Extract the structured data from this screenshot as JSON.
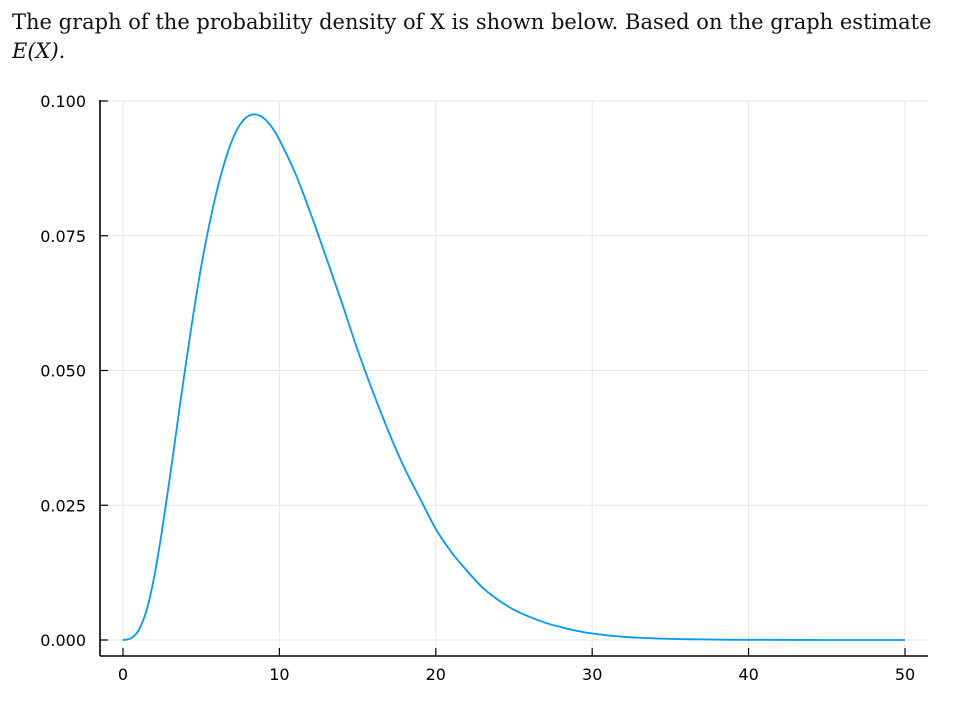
{
  "question": {
    "line1": "The graph of the probability density of X is shown below. Based on the graph estimate",
    "line2": "E(X)."
  },
  "colors": {
    "series": "#009af9",
    "axis": "#000000",
    "grid": "#e6e6e6",
    "text": "#111111"
  },
  "chart_data": {
    "type": "line",
    "title": "",
    "xlabel": "",
    "ylabel": "",
    "xlim": [
      0,
      50
    ],
    "ylim": [
      0.0,
      0.1
    ],
    "grid": true,
    "legend": "none",
    "xticks": [
      0,
      10,
      20,
      30,
      40,
      50
    ],
    "xtick_labels": [
      "0",
      "10",
      "20",
      "30",
      "40",
      "50"
    ],
    "yticks": [
      0.0,
      0.025,
      0.05,
      0.075,
      0.1
    ],
    "ytick_labels": [
      "0.000",
      "0.025",
      "0.050",
      "0.075",
      "0.100"
    ],
    "series": [
      {
        "x": [
          0,
          0.5,
          1,
          1.5,
          2,
          2.5,
          3,
          3.5,
          4,
          4.5,
          5,
          5.5,
          6,
          6.5,
          7,
          7.5,
          8,
          8.5,
          9,
          9.5,
          10,
          11,
          12,
          13,
          14,
          15,
          16,
          17,
          18,
          19,
          20,
          21,
          22,
          23,
          24,
          25,
          26,
          27,
          28,
          29,
          30,
          32,
          34,
          36,
          38,
          40,
          45,
          50
        ],
        "y": [
          0.0,
          0.0003,
          0.0018,
          0.0055,
          0.0118,
          0.0204,
          0.0302,
          0.0406,
          0.0509,
          0.0605,
          0.0693,
          0.0768,
          0.0833,
          0.0887,
          0.0929,
          0.0957,
          0.0972,
          0.0975,
          0.0968,
          0.0952,
          0.0928,
          0.0867,
          0.0791,
          0.0709,
          0.0625,
          0.0538,
          0.0459,
          0.0385,
          0.0319,
          0.0262,
          0.0206,
          0.0163,
          0.0128,
          0.0097,
          0.0074,
          0.0056,
          0.0043,
          0.0032,
          0.0024,
          0.0017,
          0.0012,
          0.0006,
          0.0003,
          0.00015,
          7e-05,
          3e-05,
          5e-06,
          0.0
        ]
      }
    ]
  }
}
